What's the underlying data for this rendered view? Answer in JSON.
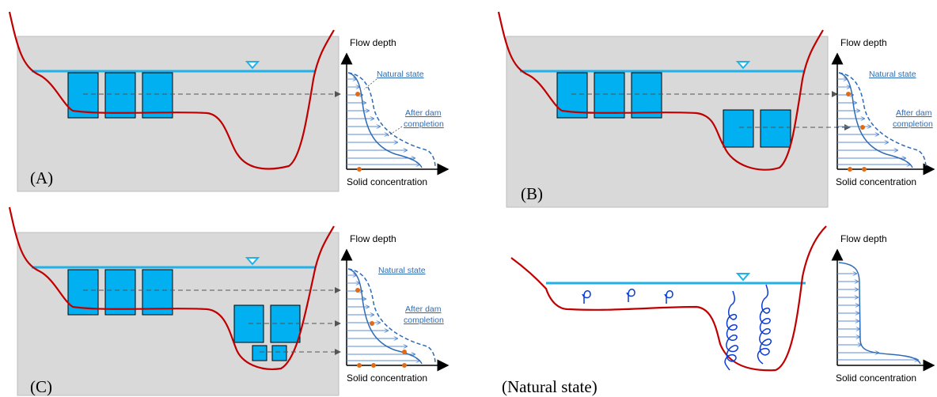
{
  "panels": [
    {
      "id": "A",
      "label": "(A)",
      "annotations": [
        "Natural state",
        "After dam",
        "completion"
      ]
    },
    {
      "id": "B",
      "label": "(B)",
      "annotations": [
        "Natural state",
        "After dam",
        "completion"
      ]
    },
    {
      "id": "C",
      "label": "(C)",
      "annotations": [
        "Natural state",
        "After dam",
        "completion"
      ]
    },
    {
      "id": "N",
      "label": "(Natural state)",
      "annotations": []
    }
  ],
  "axis": {
    "y_title": "Flow depth",
    "x_title": "Solid concentration"
  },
  "colors": {
    "reservoir": "#d9d9d9",
    "water_line": "#1fb1e8",
    "intake": "#00b0f0",
    "riverbed": "#c00000",
    "profile": "#2e6bb3",
    "dot": "#e06b17",
    "vortex": "#0a3bd6"
  }
}
